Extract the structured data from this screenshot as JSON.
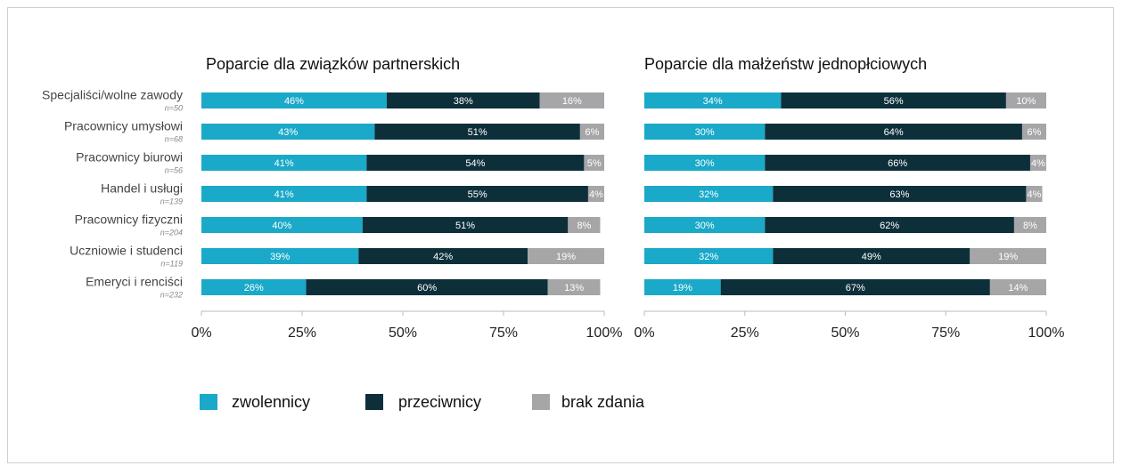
{
  "chart_data": [
    {
      "type": "bar",
      "title": "Poparcie dla związków partnerskich",
      "categories": [
        "Specjaliści/wolne zawody",
        "Pracownicy umysłowi",
        "Pracownicy biurowi",
        "Handel i usługi",
        "Pracownicy fizyczni",
        "Uczniowie i studenci",
        "Emeryci i renciści"
      ],
      "n_labels": [
        "n=50",
        "n=68",
        "n=56",
        "n=139",
        "n=204",
        "n=119",
        "n=232"
      ],
      "series": [
        {
          "name": "zwolennicy",
          "color": "#1aa9c8",
          "values": [
            46,
            43,
            41,
            41,
            40,
            39,
            26
          ],
          "value_labels": [
            "46%",
            "43%",
            "41%",
            "41%",
            "40%",
            "39%",
            "26%"
          ]
        },
        {
          "name": "przeciwnicy",
          "color": "#0d2f3a",
          "values": [
            38,
            51,
            54,
            55,
            51,
            42,
            60
          ],
          "value_labels": [
            "38%",
            "51%",
            "54%",
            "55%",
            "51%",
            "42%",
            "60%"
          ]
        },
        {
          "name": "brak zdania",
          "color": "#a6a6a8",
          "values": [
            16,
            6,
            5,
            4,
            8,
            19,
            13
          ],
          "value_labels": [
            "16%",
            "6%",
            "5%",
            "4%",
            "8%",
            "19%",
            "13%"
          ]
        }
      ],
      "xlim": [
        0,
        100
      ],
      "xticks": [
        {
          "value": 0,
          "label": "0%"
        },
        {
          "value": 25,
          "label": "25%"
        },
        {
          "value": 50,
          "label": "50%"
        },
        {
          "value": 75,
          "label": "75%"
        },
        {
          "value": 100,
          "label": "100%"
        }
      ]
    },
    {
      "type": "bar",
      "title": "Poparcie dla małżeństw jednopłciowych",
      "series": [
        {
          "color": "#1aa9c8",
          "values": [
            34,
            30,
            30,
            32,
            30,
            32,
            19
          ],
          "value_labels": [
            "34%",
            "30%",
            "30%",
            "32%",
            "30%",
            "32%",
            "19%"
          ]
        },
        {
          "color": "#0d2f3a",
          "values": [
            56,
            64,
            66,
            63,
            62,
            49,
            67
          ],
          "value_labels": [
            "56%",
            "64%",
            "66%",
            "63%",
            "62%",
            "49%",
            "67%"
          ]
        },
        {
          "color": "#a6a6a8",
          "values": [
            10,
            6,
            4,
            4,
            8,
            19,
            14
          ],
          "value_labels": [
            "10%",
            "6%",
            "4%",
            "4%",
            "8%",
            "19%",
            "14%"
          ]
        }
      ],
      "xlim": [
        0,
        100
      ],
      "xticks": [
        {
          "value": 0,
          "label": "0%"
        },
        {
          "value": 25,
          "label": "25%"
        },
        {
          "value": 50,
          "label": "50%"
        },
        {
          "value": 75,
          "label": "75%"
        },
        {
          "value": 100,
          "label": "100%"
        }
      ]
    }
  ]
}
